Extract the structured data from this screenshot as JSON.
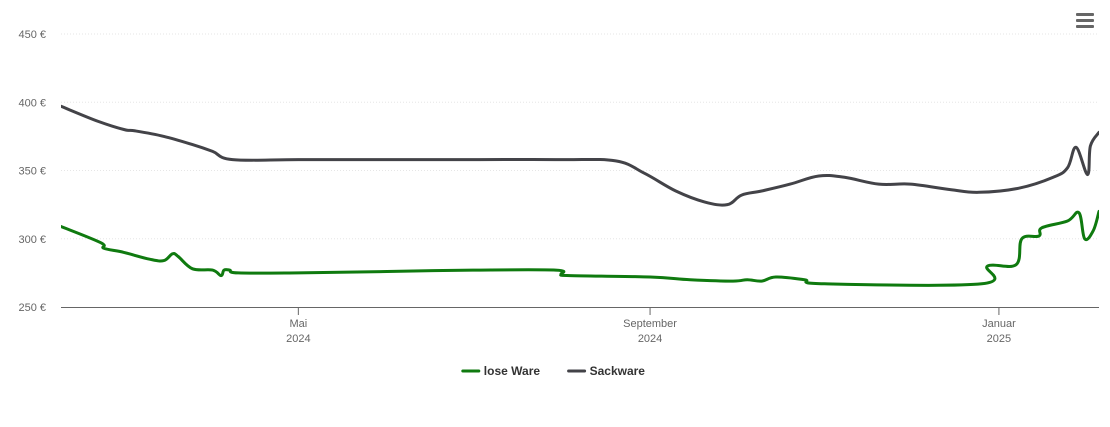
{
  "menu_icon": "hamburger-menu-icon",
  "chart_data": {
    "type": "line",
    "title": "",
    "xlabel": "",
    "ylabel": "",
    "ylim": [
      250,
      450
    ],
    "xlim": [
      "2024-02-08",
      "2025-02-05"
    ],
    "y_ticks": [
      250,
      300,
      350,
      400,
      450
    ],
    "y_tick_labels": [
      "250 €",
      "300 €",
      "350 €",
      "400 €",
      "450 €"
    ],
    "x_ticks": [
      {
        "date": "2024-05-01",
        "line1": "Mai",
        "line2": "2024"
      },
      {
        "date": "2024-09-01",
        "line1": "September",
        "line2": "2024"
      },
      {
        "date": "2025-01-01",
        "line1": "Januar",
        "line2": "2025"
      }
    ],
    "grid": "horizontal",
    "legend_position": "bottom",
    "series": [
      {
        "name": "lose Ware",
        "color": "#0f7a0f",
        "points": [
          [
            "2024-02-08",
            309
          ],
          [
            "2024-02-22",
            297
          ],
          [
            "2024-02-23",
            293
          ],
          [
            "2024-03-01",
            290
          ],
          [
            "2024-03-10",
            285
          ],
          [
            "2024-03-15",
            284
          ],
          [
            "2024-03-18",
            289
          ],
          [
            "2024-03-20",
            287
          ],
          [
            "2024-03-25",
            278
          ],
          [
            "2024-04-01",
            277
          ],
          [
            "2024-04-04",
            273
          ],
          [
            "2024-04-05",
            277
          ],
          [
            "2024-04-07",
            277
          ],
          [
            "2024-04-10",
            275
          ],
          [
            "2024-05-01",
            275
          ],
          [
            "2024-06-01",
            276
          ],
          [
            "2024-07-01",
            277
          ],
          [
            "2024-07-30",
            277
          ],
          [
            "2024-08-01",
            274
          ],
          [
            "2024-08-04",
            273
          ],
          [
            "2024-09-01",
            272
          ],
          [
            "2024-09-15",
            270
          ],
          [
            "2024-09-30",
            269
          ],
          [
            "2024-10-05",
            270
          ],
          [
            "2024-10-10",
            269
          ],
          [
            "2024-10-15",
            272
          ],
          [
            "2024-10-25",
            270
          ],
          [
            "2024-11-01",
            267
          ],
          [
            "2024-12-26",
            267
          ],
          [
            "2024-12-28",
            280
          ],
          [
            "2025-01-07",
            281
          ],
          [
            "2025-01-09",
            300
          ],
          [
            "2025-01-15",
            302
          ],
          [
            "2025-01-16",
            308
          ],
          [
            "2025-01-25",
            313
          ],
          [
            "2025-01-29",
            319
          ],
          [
            "2025-01-31",
            300
          ],
          [
            "2025-02-03",
            306
          ],
          [
            "2025-02-05",
            320
          ]
        ]
      },
      {
        "name": "Sackware",
        "color": "#434348",
        "points": [
          [
            "2024-02-08",
            397
          ],
          [
            "2024-02-21",
            386
          ],
          [
            "2024-03-01",
            380
          ],
          [
            "2024-03-05",
            379
          ],
          [
            "2024-03-15",
            375
          ],
          [
            "2024-03-25",
            369
          ],
          [
            "2024-04-01",
            364
          ],
          [
            "2024-04-08",
            358
          ],
          [
            "2024-05-01",
            358
          ],
          [
            "2024-06-01",
            358
          ],
          [
            "2024-07-01",
            358
          ],
          [
            "2024-08-01",
            358
          ],
          [
            "2024-08-20",
            357
          ],
          [
            "2024-08-30",
            348
          ],
          [
            "2024-09-10",
            335
          ],
          [
            "2024-09-20",
            327
          ],
          [
            "2024-09-28",
            325
          ],
          [
            "2024-10-03",
            332
          ],
          [
            "2024-10-10",
            335
          ],
          [
            "2024-10-20",
            340
          ],
          [
            "2024-10-30",
            346
          ],
          [
            "2024-11-08",
            345
          ],
          [
            "2024-11-20",
            340
          ],
          [
            "2024-12-01",
            340
          ],
          [
            "2024-12-15",
            336
          ],
          [
            "2024-12-25",
            334
          ],
          [
            "2025-01-08",
            337
          ],
          [
            "2025-01-20",
            345
          ],
          [
            "2025-01-25",
            352
          ],
          [
            "2025-01-28",
            367
          ],
          [
            "2025-02-01",
            347
          ],
          [
            "2025-02-02",
            368
          ],
          [
            "2025-02-05",
            378
          ]
        ]
      }
    ]
  }
}
